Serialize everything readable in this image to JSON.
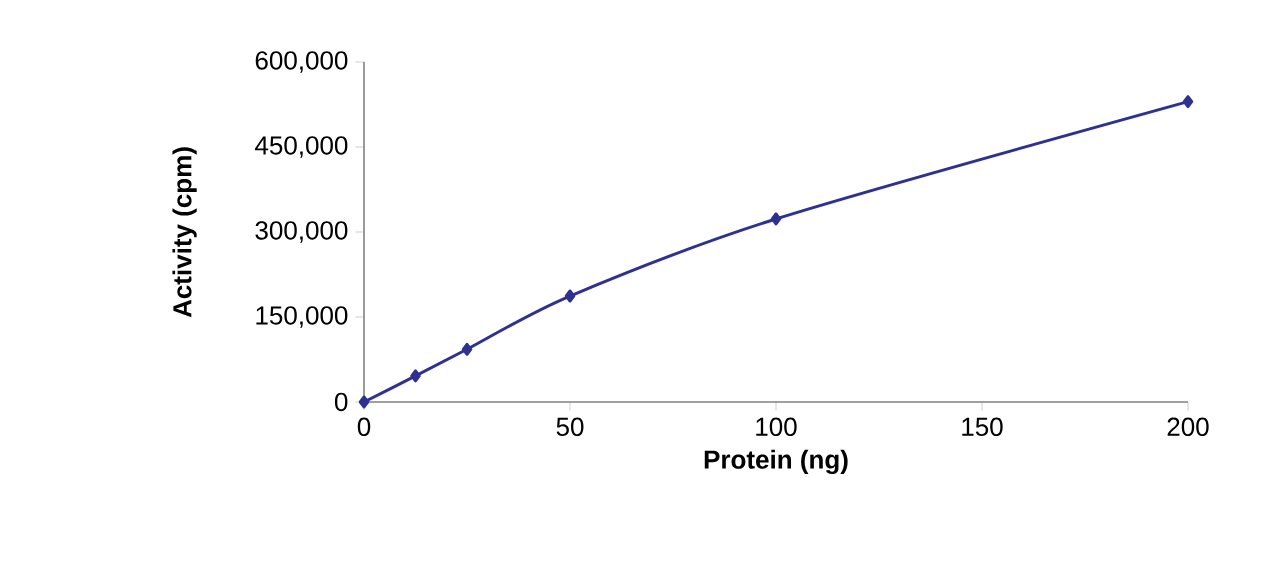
{
  "chart_data": {
    "type": "line",
    "xlabel": "Protein (ng)",
    "ylabel": "Activity (cpm)",
    "x": [
      0,
      12.5,
      25,
      50,
      100,
      200
    ],
    "series": [
      {
        "color": "#2e3192",
        "values": [
          0,
          46000,
          93000,
          187000,
          323000,
          530000
        ]
      }
    ],
    "xlim": [
      0,
      200
    ],
    "xticks": [
      0,
      50,
      100,
      150,
      200
    ],
    "ylim": [
      0,
      600000
    ],
    "yticks": [
      {
        "value": 0,
        "label": "0"
      },
      {
        "value": 150000,
        "label": "150,000"
      },
      {
        "value": 300000,
        "label": "300,000"
      },
      {
        "value": 450000,
        "label": "450,000"
      },
      {
        "value": 600000,
        "label": "600,000"
      }
    ],
    "marker": "diamond",
    "line_style": "solid"
  }
}
